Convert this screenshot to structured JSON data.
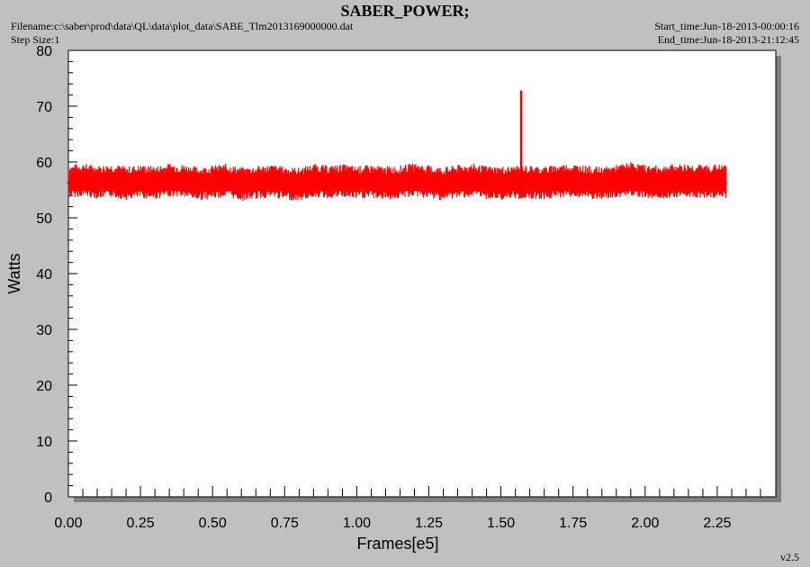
{
  "header": {
    "title": "SABER_POWER;",
    "filename": "Filename:c:\\saber\\prod\\data\\QL\\data\\plot_data\\SABE_Tlm2013169000000.dat",
    "step_size": "Step Size:1",
    "start_time": "Start_time:Jun-18-2013-00:00:16",
    "end_time": "End_time:Jun-18-2013-21:12:45"
  },
  "footer": {
    "version": "v2.5"
  },
  "colors": {
    "series": "#ff0000",
    "background": "#c0c0c0",
    "plot_area": "#ffffff"
  },
  "chart_data": {
    "type": "line",
    "title": "SABER_POWER;",
    "xlabel": "Frames[e5]",
    "ylabel": "Watts",
    "xlim": [
      0,
      2.4
    ],
    "ylim": [
      0,
      80
    ],
    "x_ticks": [
      "0.00",
      "0.25",
      "0.50",
      "0.75",
      "1.00",
      "1.25",
      "1.50",
      "1.75",
      "2.00",
      "2.25"
    ],
    "y_ticks": [
      "0",
      "10",
      "20",
      "30",
      "40",
      "50",
      "60",
      "70",
      "80"
    ],
    "grid": false,
    "series": [
      {
        "color": "#ff0000",
        "x": [
          0.0,
          0.05,
          0.1,
          0.15,
          0.2,
          0.25,
          0.3,
          0.35,
          0.4,
          0.45,
          0.5,
          0.55,
          0.6,
          0.65,
          0.7,
          0.75,
          0.8,
          0.85,
          0.9,
          0.95,
          1.0,
          1.05,
          1.1,
          1.15,
          1.2,
          1.25,
          1.3,
          1.35,
          1.4,
          1.45,
          1.5,
          1.55,
          1.57,
          1.6,
          1.65,
          1.7,
          1.75,
          1.8,
          1.85,
          1.9,
          1.95,
          2.0,
          2.05,
          2.1,
          2.15,
          2.2,
          2.25,
          2.28
        ],
        "y": [
          56.5,
          56.8,
          56.4,
          56.7,
          56.2,
          56.5,
          56.3,
          56.8,
          56.6,
          56.1,
          56.4,
          56.7,
          56.0,
          56.3,
          56.6,
          56.2,
          56.0,
          56.7,
          56.4,
          56.6,
          56.3,
          56.5,
          56.2,
          56.4,
          56.8,
          56.4,
          56.1,
          56.5,
          56.7,
          56.3,
          56.2,
          56.3,
          72.8,
          56.4,
          56.2,
          56.6,
          56.7,
          56.3,
          56.1,
          56.5,
          57.0,
          56.5,
          56.4,
          56.6,
          56.7,
          56.5,
          56.6,
          56.5
        ],
        "band": [
          53.5,
          59.5
        ]
      }
    ]
  }
}
